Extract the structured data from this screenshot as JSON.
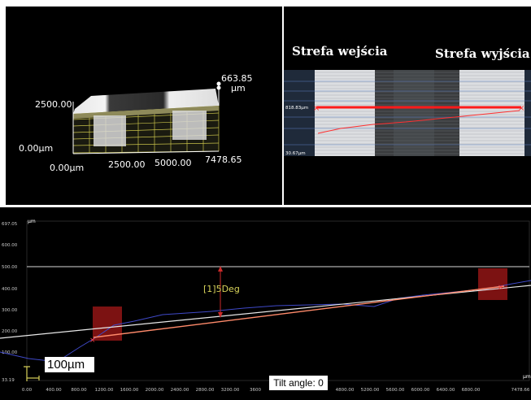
{
  "view3d": {
    "z_value": "663.85",
    "z_unit": "µm",
    "y_label": "2500.00",
    "origin_y_label": "0.00µm",
    "x_labels": [
      "0.00µm",
      "2500.00",
      "5000.00",
      "7478.65"
    ]
  },
  "image_view": {
    "zone_in_label": "Strefa wejścia",
    "zone_out_label": "Strefa wyjścia",
    "marker_top": "818.83µm",
    "marker_bottom": "30.67µm"
  },
  "profile": {
    "y_unit": "µm",
    "x_unit": "µm",
    "y_ticks": [
      "697.05",
      "600.00",
      "500.00",
      "400.00",
      "300.00",
      "200.00",
      "100.00",
      "33.19"
    ],
    "x_ticks": [
      "0.00",
      "400.00",
      "800.00",
      "1200.00",
      "1600.00",
      "2000.00",
      "2400.00",
      "2800.00",
      "3200.00",
      "3600",
      "4800.00",
      "5200.00",
      "5600.00",
      "6000.00",
      "6400.00",
      "6800.00",
      "7478.66"
    ],
    "angle_label": "[1]5Deg",
    "scale_label": "100µm",
    "tilt_label": "Tilt angle: 0"
  },
  "colors": {
    "profile_line": "#3f49c8",
    "fit_line": "#ff8a6a",
    "angle_marker": "#cc2a2a",
    "angle_text": "#d8d35a",
    "region_box": "#8a1414"
  }
}
